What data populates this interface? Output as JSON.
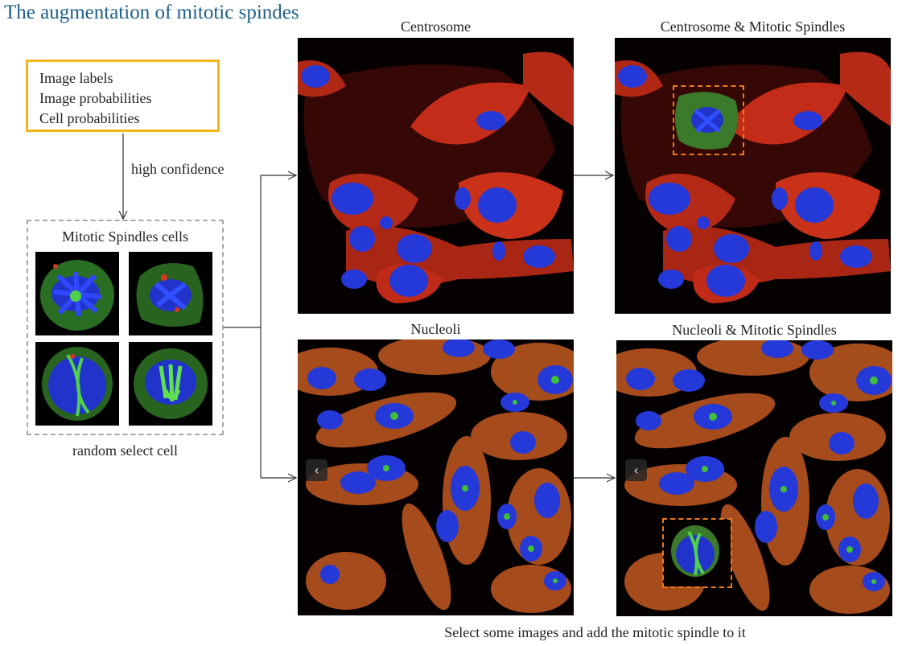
{
  "title": "The augmentation of mitotic spindes",
  "source": {
    "lines": [
      "Image labels",
      "Image probabilities",
      "Cell probabilities"
    ]
  },
  "edge_label": "high confidence",
  "cells_box": {
    "title": "Mitotic Spindles cells",
    "caption": "random select cell"
  },
  "panels": {
    "centrosome": "Centrosome",
    "centrosome_ms": "Centrosome & Mitotic Spindles",
    "nucleoli": "Nucleoli",
    "nucleoli_ms": "Nucleoli & Mitotic Spindles"
  },
  "bottom_caption": "Select some images and add the mitotic spindle to it",
  "nav_icon": "chevron-left-icon",
  "colors": {
    "title": "#1f5f8b",
    "source_border": "#f2b51c",
    "dashed_border": "#a8a8a8",
    "insert_border": "#f07a1e",
    "nucleus": "#2336d9",
    "actin": "#d8381f",
    "spindle": "#3fbf3a"
  }
}
